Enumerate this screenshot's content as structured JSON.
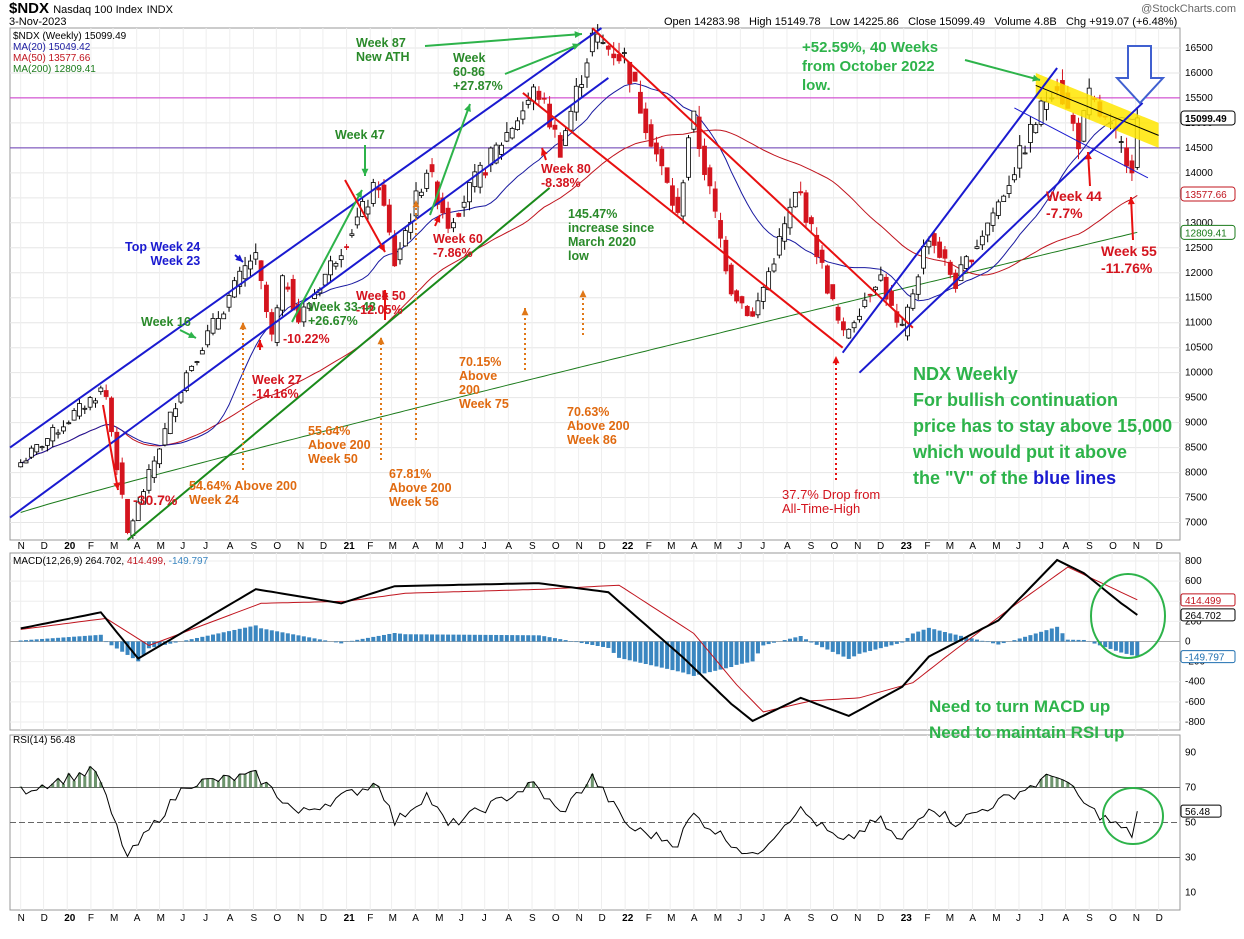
{
  "header": {
    "symbol": "$NDX",
    "name": "Nasdaq 100 Index",
    "exchange": "INDX",
    "date": "3-Nov-2023",
    "watermark": "@StockCharts.com",
    "open_label": "Open",
    "open": "14283.98",
    "high_label": "High",
    "high": "15149.78",
    "low_label": "Low",
    "low": "14225.86",
    "close_label": "Close",
    "close": "15099.49",
    "volume_label": "Volume",
    "volume": "4.8B",
    "chg_label": "Chg",
    "chg": "+919.07 (+6.48%)"
  },
  "legend": [
    {
      "text": "$NDX (Weekly) 15099.49",
      "color": "#000000"
    },
    {
      "text": "MA(20) 15049.42",
      "color": "#1a1aa0"
    },
    {
      "text": "MA(50) 13577.66",
      "color": "#c0141e"
    },
    {
      "text": "MA(200) 12809.41",
      "color": "#1a7a1a"
    }
  ],
  "badges": {
    "close": {
      "text": "15099.49",
      "value": 15099.49,
      "bg": "#ffffff",
      "fg": "#000000",
      "border": "#000000"
    },
    "ma50": {
      "text": "13577.66",
      "value": 13577.66,
      "bg": "#ffffff",
      "fg": "#c0141e",
      "border": "#c0141e"
    },
    "ma200": {
      "text": "12809.41",
      "value": 12809.41,
      "bg": "#ffffff",
      "fg": "#1a7a1a",
      "border": "#1a7a1a"
    },
    "macd": {
      "text": "414.499",
      "value": 414.499,
      "fg": "#c0141e"
    },
    "macd2": {
      "text": "264.702",
      "value": 264.702,
      "fg": "#000000"
    },
    "hist": {
      "text": "-149.797",
      "value": -149.797,
      "fg": "#1e6fb0"
    },
    "rsi": {
      "text": "56.48",
      "value": 56.48,
      "fg": "#000000"
    }
  },
  "macd_label": {
    "main": "MACD(12,26,9) 264.702,",
    "signal": " 414.499,",
    "hist": " -149.797"
  },
  "rsi_label": "RSI(14) 56.48",
  "annotations": {
    "green_main": "NDX Weekly\nFor bullish continuation\nprice has to stay above 15,000\nwhich would put it above\nthe \"V\" of the ",
    "green_blue_word": "blue lines",
    "macd_note": "Need to turn MACD up\nNeed to maintain RSI up",
    "gain_2022": "+52.59%, 40 Weeks\nfrom October 2022\nlow.",
    "week87": "Week 87\nNew ATH",
    "week60_86": "Week\n60-86\n+27.87%",
    "week47": "Week 47",
    "week33_48": "Week 33-48\n+26.67%",
    "week16": "Week 16",
    "top_week24": "Top Week 24\nWeek 23",
    "drop_covid": "-30.7%",
    "week27": "Week 27\n-14.16%",
    "drop_10": "-10.22%",
    "week50": "Week 50\n-12.05%",
    "week60": "Week 60\n-7.86%",
    "week80": "Week 80\n-8.38%",
    "increase": "145.47%\nincrease since\nMarch 2020\nlow",
    "above24": "54.64% Above 200\nWeek 24",
    "above50": "55.64%\nAbove 200\nWeek 50",
    "above56": "67.81%\nAbove 200\nWeek 56",
    "above75": "70.15%\nAbove\n200\nWeek 75",
    "above86": "70.63%\nAbove 200\nWeek 86",
    "drop_ath": "37.7% Drop from\nAll-Time-High",
    "week44": "Week 44\n-7.7%",
    "week55": "Week 55\n-11.76%"
  },
  "chart_data": [
    {
      "type": "candlestick",
      "title": "$NDX Nasdaq 100 Index INDX (Weekly)",
      "frequency": "weekly",
      "y_ticks": [
        7000,
        7500,
        8000,
        8500,
        9000,
        9500,
        10000,
        10500,
        11000,
        11500,
        12000,
        12500,
        13000,
        13500,
        14000,
        14500,
        15000,
        15500,
        16000,
        16500
      ],
      "ylim": [
        6650,
        16900
      ],
      "x_tick_labels": [
        "N",
        "D",
        "20",
        "F",
        "M",
        "A",
        "M",
        "J",
        "J",
        "A",
        "S",
        "O",
        "N",
        "D",
        "21",
        "F",
        "M",
        "A",
        "M",
        "J",
        "J",
        "A",
        "S",
        "O",
        "N",
        "D",
        "22",
        "F",
        "M",
        "A",
        "M",
        "J",
        "J",
        "A",
        "S",
        "O",
        "N",
        "D",
        "23",
        "F",
        "M",
        "A",
        "M",
        "J",
        "J",
        "A",
        "S",
        "O",
        "N",
        "D"
      ],
      "horizontal_lines": [
        {
          "value": 15500,
          "color": "#cc33cc"
        },
        {
          "value": 14500,
          "color": "#6a3bb5"
        }
      ],
      "key_points": [
        {
          "date": "2019-11-01",
          "close": 8200
        },
        {
          "date": "2020-02-19",
          "close": 9720
        },
        {
          "date": "2020-03-20",
          "close": 6770
        },
        {
          "date": "2020-06-05",
          "close": 10000
        },
        {
          "date": "2020-09-02",
          "close": 12400
        },
        {
          "date": "2020-09-25",
          "close": 10680
        },
        {
          "date": "2020-10-12",
          "close": 12000
        },
        {
          "date": "2020-10-30",
          "close": 11050
        },
        {
          "date": "2021-02-12",
          "close": 13800
        },
        {
          "date": "2021-03-05",
          "close": 12200
        },
        {
          "date": "2021-04-16",
          "close": 14100
        },
        {
          "date": "2021-05-14",
          "close": 13000
        },
        {
          "date": "2021-09-07",
          "close": 15700
        },
        {
          "date": "2021-10-08",
          "close": 14500
        },
        {
          "date": "2021-11-19",
          "close": 16700
        },
        {
          "date": "2021-12-31",
          "close": 16300
        },
        {
          "date": "2022-03-11",
          "close": 13100
        },
        {
          "date": "2022-03-29",
          "close": 15250
        },
        {
          "date": "2022-05-20",
          "close": 11700
        },
        {
          "date": "2022-06-17",
          "close": 11100
        },
        {
          "date": "2022-08-16",
          "close": 13700
        },
        {
          "date": "2022-10-13",
          "close": 10700
        },
        {
          "date": "2022-11-30",
          "close": 12000
        },
        {
          "date": "2022-12-28",
          "close": 10700
        },
        {
          "date": "2023-02-02",
          "close": 12800
        },
        {
          "date": "2023-03-10",
          "close": 11800
        },
        {
          "date": "2023-05-05",
          "close": 13400
        },
        {
          "date": "2023-07-19",
          "close": 15900
        },
        {
          "date": "2023-08-18",
          "close": 14650
        },
        {
          "date": "2023-09-01",
          "close": 15500
        },
        {
          "date": "2023-10-27",
          "close": 14180
        },
        {
          "date": "2023-11-03",
          "close": 15099.49
        }
      ],
      "series": [
        {
          "name": "MA(20)",
          "color": "#1a1aa0",
          "last": 15049.42
        },
        {
          "name": "MA(50)",
          "color": "#c0141e",
          "last": 13577.66
        },
        {
          "name": "MA(200)",
          "color": "#1a7a1a",
          "last": 12809.41
        }
      ]
    },
    {
      "type": "line",
      "name": "MACD(12,26,9)",
      "y_ticks": [
        -800,
        -600,
        -400,
        -200,
        0,
        200,
        400,
        600,
        800
      ],
      "ylim": [
        -880,
        880
      ],
      "series": [
        {
          "name": "MACD",
          "color": "#000000",
          "last": 264.702,
          "key_points": [
            [
              "2019-11-01",
              130
            ],
            [
              "2020-02-14",
              290
            ],
            [
              "2020-04-03",
              -170
            ],
            [
              "2020-09-04",
              520
            ],
            [
              "2020-12-25",
              380
            ],
            [
              "2021-03-05",
              550
            ],
            [
              "2021-09-10",
              580
            ],
            [
              "2021-12-10",
              490
            ],
            [
              "2022-03-18",
              -160
            ],
            [
              "2022-05-20",
              -620
            ],
            [
              "2022-06-17",
              -790
            ],
            [
              "2022-08-19",
              -560
            ],
            [
              "2022-10-21",
              -740
            ],
            [
              "2022-12-30",
              -450
            ],
            [
              "2023-02-03",
              -150
            ],
            [
              "2023-05-05",
              210
            ],
            [
              "2023-07-21",
              810
            ],
            [
              "2023-08-25",
              680
            ],
            [
              "2023-10-13",
              380
            ],
            [
              "2023-11-03",
              264.702
            ]
          ]
        },
        {
          "name": "Signal",
          "color": "#c0141e",
          "last": 414.499,
          "key_points": [
            [
              "2019-11-01",
              120
            ],
            [
              "2020-02-21",
              230
            ],
            [
              "2020-04-17",
              -40
            ],
            [
              "2020-09-11",
              380
            ],
            [
              "2021-01-01",
              400
            ],
            [
              "2021-03-19",
              480
            ],
            [
              "2021-09-17",
              520
            ],
            [
              "2021-12-24",
              560
            ],
            [
              "2022-04-01",
              80
            ],
            [
              "2022-05-27",
              -430
            ],
            [
              "2022-07-01",
              -700
            ],
            [
              "2022-09-02",
              -590
            ],
            [
              "2022-11-04",
              -560
            ],
            [
              "2023-01-13",
              -410
            ],
            [
              "2023-03-03",
              -120
            ],
            [
              "2023-05-26",
              360
            ],
            [
              "2023-08-04",
              740
            ],
            [
              "2023-11-03",
              414.499
            ]
          ]
        },
        {
          "name": "Histogram",
          "color": "#3a86c0",
          "last": -149.797
        }
      ]
    },
    {
      "type": "line",
      "name": "RSI(14)",
      "y_ticks": [
        10,
        30,
        50,
        70,
        90
      ],
      "ylim": [
        0,
        100
      ],
      "reference_lines": [
        70,
        50,
        30
      ],
      "series": [
        {
          "name": "RSI(14)",
          "color": "#000000",
          "last": 56.48,
          "key_points": [
            [
              "2019-11-01",
              68
            ],
            [
              "2020-02-07",
              80
            ],
            [
              "2020-03-20",
              30
            ],
            [
              "2020-06-05",
              72
            ],
            [
              "2020-09-04",
              77
            ],
            [
              "2020-10-30",
              55
            ],
            [
              "2021-02-12",
              73
            ],
            [
              "2021-03-05",
              50
            ],
            [
              "2021-04-16",
              66
            ],
            [
              "2021-05-14",
              48
            ],
            [
              "2021-09-03",
              72
            ],
            [
              "2021-10-08",
              55
            ],
            [
              "2021-11-19",
              76
            ],
            [
              "2022-01-07",
              47
            ],
            [
              "2022-03-11",
              38
            ],
            [
              "2022-03-29",
              55
            ],
            [
              "2022-06-17",
              30
            ],
            [
              "2022-08-16",
              58
            ],
            [
              "2022-10-13",
              38
            ],
            [
              "2022-11-30",
              52
            ],
            [
              "2022-12-28",
              38
            ],
            [
              "2023-02-03",
              60
            ],
            [
              "2023-03-10",
              50
            ],
            [
              "2023-07-21",
              78
            ],
            [
              "2023-09-01",
              58
            ],
            [
              "2023-10-27",
              43
            ],
            [
              "2023-11-03",
              56.48
            ]
          ]
        }
      ]
    }
  ],
  "colors": {
    "up": "#000000",
    "down": "#d4141e",
    "channel_blue": "#1a1ad0",
    "channel_red": "#e81010",
    "channel_green": "#1a8a1a",
    "highlight_yellow": "#ffe600",
    "histogram": "#3a86c0"
  }
}
